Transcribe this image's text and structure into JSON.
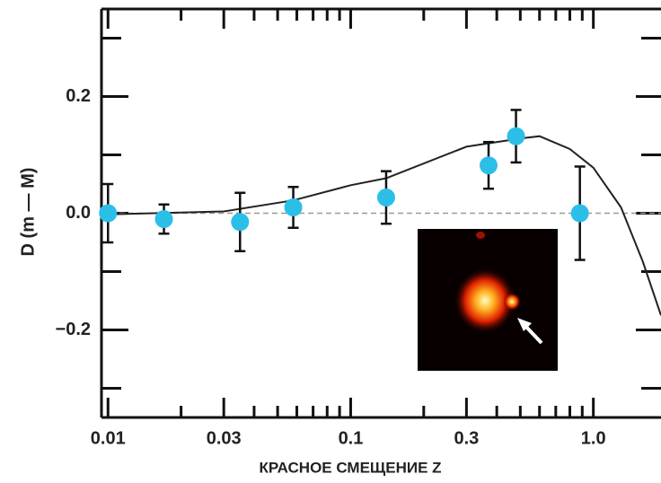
{
  "chart_data": {
    "type": "scatter",
    "x_label": "КРАСНОЕ СМЕЩЕНИЕ Z",
    "y_label": "D (m — M)",
    "log_x": true,
    "color": "#2bbfe8",
    "x": [
      0.01,
      0.017,
      0.035,
      0.058,
      0.14,
      0.37,
      0.48,
      0.88
    ],
    "values": [
      0.0,
      -0.01,
      -0.015,
      0.01,
      0.027,
      0.082,
      0.132,
      0.0
    ],
    "errors": [
      0.05,
      0.025,
      0.05,
      0.035,
      0.045,
      0.04,
      0.045,
      0.08
    ],
    "curve": {
      "color": "#222222",
      "x": [
        0.01,
        0.03,
        0.058,
        0.1,
        0.14,
        0.3,
        0.5,
        0.6,
        0.8,
        1.0,
        1.3,
        1.6,
        1.9
      ],
      "values": [
        -0.002,
        0.003,
        0.022,
        0.048,
        0.06,
        0.114,
        0.128,
        0.132,
        0.11,
        0.078,
        0.01,
        -0.083,
        -0.175
      ]
    },
    "zero_line": true,
    "xlim": [
      0.0094,
      1.9
    ],
    "ylim": [
      -0.35,
      0.35
    ],
    "xticks": [
      0.01,
      0.03,
      0.1,
      0.3,
      {
        "value": 1,
        "label": "1.0"
      }
    ],
    "xminorticks": [
      0.02,
      0.04,
      0.05,
      0.06,
      0.07,
      0.08,
      0.09,
      0.2,
      0.4,
      0.5,
      0.6,
      0.7,
      0.8,
      0.9
    ],
    "yticks": [
      {
        "value": -0.2,
        "label": "−0.2"
      },
      {
        "value": 0,
        "label": "0.0"
      },
      0.2
    ],
    "yminorticks": [
      -0.3,
      -0.1,
      0.1,
      0.3
    ]
  }
}
